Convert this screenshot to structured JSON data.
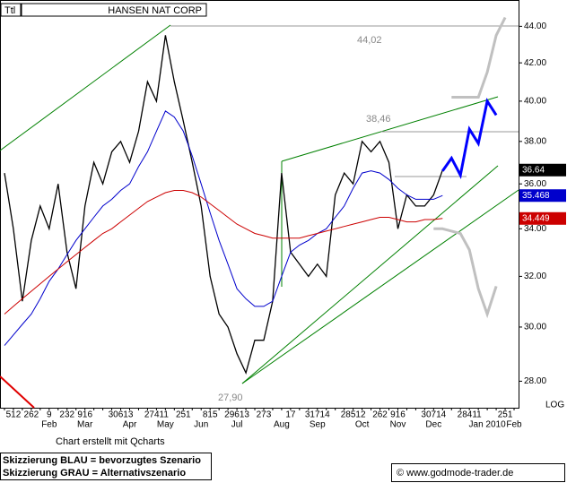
{
  "chart_data": {
    "type": "line",
    "title": "HANSEN NAT CORP",
    "tag": "Ttl",
    "scale": "LOG",
    "log_scale": true,
    "ylim": [
      27.07,
      45.5
    ],
    "yticks": [
      {
        "value": 28,
        "label": "28.00"
      },
      {
        "value": 30,
        "label": "30.00"
      },
      {
        "value": 32,
        "label": "32.00"
      },
      {
        "value": 34,
        "label": "34.00"
      },
      {
        "value": 36,
        "label": "36.00"
      },
      {
        "value": 38,
        "label": "38.00"
      },
      {
        "value": 40,
        "label": "40.00"
      },
      {
        "value": 42,
        "label": "42.00"
      },
      {
        "value": 44,
        "label": "44.00"
      }
    ],
    "categories": [
      null,
      null,
      null,
      null,
      null,
      "Feb",
      null,
      null,
      null,
      "Mar",
      null,
      null,
      null,
      null,
      "Apr",
      null,
      null,
      null,
      "May",
      null,
      null,
      null,
      "Jun",
      null,
      null,
      null,
      "Jul",
      null,
      null,
      null,
      null,
      "Aug",
      null,
      null,
      null,
      "Sep",
      null,
      null,
      null,
      null,
      "Oct",
      null,
      null,
      null,
      "Nov",
      null,
      null,
      null,
      "Dec",
      null,
      null,
      null,
      null,
      null,
      "Jan 2010",
      null,
      null,
      "Feb"
    ],
    "day_labels": [
      null,
      "512",
      null,
      "262",
      null,
      "9",
      null,
      "232",
      null,
      "916",
      null,
      null,
      null,
      "30613",
      null,
      null,
      null,
      "27411",
      null,
      null,
      "251",
      null,
      null,
      "815",
      null,
      null,
      "29613",
      null,
      null,
      "273",
      null,
      null,
      "17",
      null,
      null,
      "31714",
      null,
      null,
      null,
      "28512",
      null,
      null,
      "262",
      null,
      "916",
      null,
      null,
      null,
      "30714",
      null,
      null,
      null,
      "28411",
      null,
      null,
      null,
      "251",
      null
    ],
    "series": [
      {
        "color": "#000000",
        "width": 1.3,
        "values": [
          36.5,
          34,
          31,
          33.5,
          35,
          34,
          36,
          33,
          31.5,
          35,
          37,
          36,
          37.5,
          38,
          37,
          38.5,
          41,
          40,
          43.5,
          41,
          39,
          37,
          35,
          32,
          30.5,
          30,
          29,
          28.3,
          29.5,
          29.5,
          31,
          36.5,
          33,
          32.5,
          32,
          32.5,
          32,
          35.5,
          36.5,
          36,
          38,
          37.5,
          38,
          37,
          34,
          35.5,
          35,
          35,
          35.5,
          36.64,
          null,
          null,
          null,
          null,
          null,
          null,
          null,
          null
        ]
      },
      {
        "color": "#0000cc",
        "width": 1,
        "values": [
          29.3,
          29.7,
          30.1,
          30.5,
          31.1,
          31.8,
          32.3,
          32.9,
          33.5,
          34,
          34.5,
          35,
          35.3,
          35.7,
          36,
          36.8,
          37.5,
          38.5,
          39.5,
          39.2,
          38.5,
          37.3,
          36,
          34.7,
          33.5,
          32.5,
          31.5,
          31.1,
          30.8,
          30.8,
          31,
          32,
          33,
          33.3,
          33.5,
          33.8,
          34,
          34.5,
          35,
          35.8,
          36.5,
          36.6,
          36.5,
          36.2,
          35.8,
          35.5,
          35.3,
          35.3,
          35.3,
          35.468,
          null,
          null,
          null,
          null,
          null,
          null,
          null,
          null
        ]
      },
      {
        "color": "#cc0000",
        "width": 1,
        "values": [
          30.5,
          30.8,
          31.1,
          31.4,
          31.7,
          32,
          32.3,
          32.6,
          32.9,
          33.2,
          33.5,
          33.8,
          34,
          34.3,
          34.6,
          34.9,
          35.2,
          35.4,
          35.6,
          35.7,
          35.7,
          35.6,
          35.4,
          35.1,
          34.8,
          34.5,
          34.2,
          34,
          33.8,
          33.7,
          33.6,
          33.6,
          33.6,
          33.6,
          33.7,
          33.8,
          33.9,
          34,
          34.1,
          34.2,
          34.3,
          34.4,
          34.5,
          34.5,
          34.4,
          34.3,
          34.3,
          34.4,
          34.4,
          34.449,
          null,
          null,
          null,
          null,
          null,
          null,
          null,
          null
        ]
      },
      {
        "color": "#0000ff",
        "width": 3,
        "values": [
          null,
          null,
          null,
          null,
          null,
          null,
          null,
          null,
          null,
          null,
          null,
          null,
          null,
          null,
          null,
          null,
          null,
          null,
          null,
          null,
          null,
          null,
          null,
          null,
          null,
          null,
          null,
          null,
          null,
          null,
          null,
          null,
          null,
          null,
          null,
          null,
          null,
          null,
          null,
          null,
          null,
          null,
          null,
          null,
          null,
          null,
          null,
          null,
          null,
          36.6,
          37.2,
          36.4,
          38.6,
          37.9,
          40,
          39.3,
          null,
          null
        ]
      },
      {
        "color": "#c0c0c0",
        "width": 3,
        "values": [
          null,
          null,
          null,
          null,
          null,
          null,
          null,
          null,
          null,
          null,
          null,
          null,
          null,
          null,
          null,
          null,
          null,
          null,
          null,
          null,
          null,
          null,
          null,
          null,
          null,
          null,
          null,
          null,
          null,
          null,
          null,
          null,
          null,
          null,
          null,
          null,
          null,
          null,
          null,
          null,
          null,
          null,
          null,
          null,
          null,
          null,
          null,
          null,
          34,
          34,
          33.9,
          33.8,
          33.1,
          31.5,
          30.5,
          31.6,
          null,
          null
        ]
      },
      {
        "color": "#c0c0c0",
        "width": 3,
        "values": [
          null,
          null,
          null,
          null,
          null,
          null,
          null,
          null,
          null,
          null,
          null,
          null,
          null,
          null,
          null,
          null,
          null,
          null,
          null,
          null,
          null,
          null,
          null,
          null,
          null,
          null,
          null,
          null,
          null,
          null,
          null,
          null,
          null,
          null,
          null,
          null,
          null,
          null,
          null,
          null,
          null,
          null,
          null,
          null,
          null,
          null,
          null,
          null,
          null,
          null,
          40.2,
          40.2,
          40.2,
          40.2,
          41.5,
          43.5,
          44.5,
          null
        ]
      }
    ],
    "annotations": [
      "44,02",
      "38,46",
      "27,90"
    ],
    "credit": "Chart erstellt mit Qcharts",
    "legend_lines": [
      "Skizzierung BLAU = bevorzugtes Szenario",
      "Skizzierung GRAU = Alternativszenario"
    ],
    "source": "© www.godmode-trader.de"
  }
}
